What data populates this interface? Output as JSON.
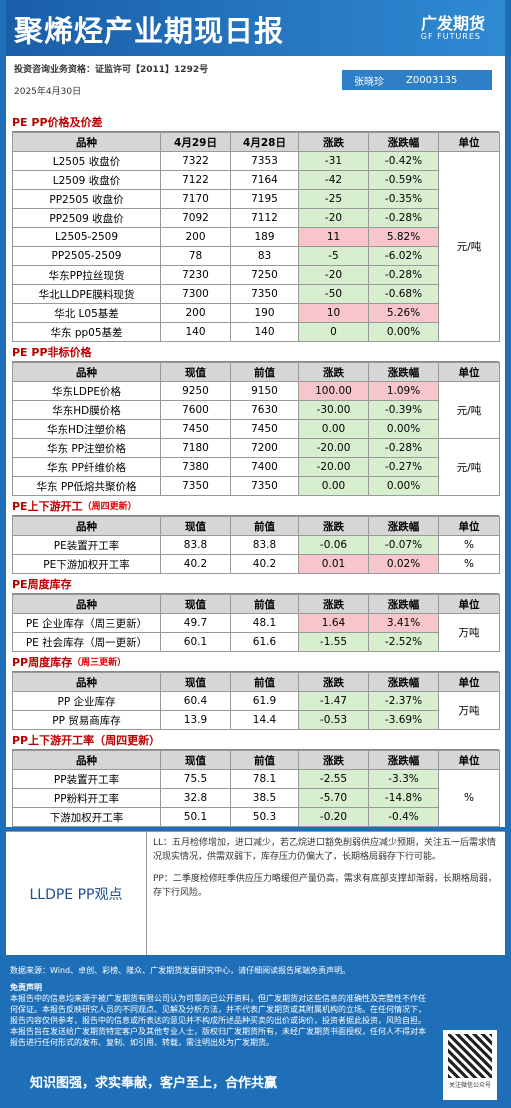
{
  "header": {
    "title": "聚烯烃产业期现日报",
    "logo": "广发期货",
    "logo_en": "GF FUTURES",
    "license": "投资咨询业务资格：证监许可【2011】1292号",
    "date": "2025年4月30日",
    "analyst": "张晓珍",
    "analyst_id": "Z0003135"
  },
  "sections": [
    {
      "title": "PE PP价格及价差",
      "columns": [
        "品种",
        "4月29日",
        "4月28日",
        "涨跌",
        "涨跌幅",
        "单位"
      ],
      "groups": [
        {
          "unit": "元/吨",
          "rows": [
            [
              "L2505 收盘价",
              "7322",
              "7353",
              "-31",
              "-0.42%"
            ],
            [
              "L2509 收盘价",
              "7122",
              "7164",
              "-42",
              "-0.59%"
            ],
            [
              "PP2505 收盘价",
              "7170",
              "7195",
              "-25",
              "-0.35%"
            ],
            [
              "PP2509 收盘价",
              "7092",
              "7112",
              "-20",
              "-0.28%"
            ],
            [
              "L2505-2509",
              "200",
              "189",
              "11",
              "5.82%"
            ],
            [
              "PP2505-2509",
              "78",
              "83",
              "-5",
              "-6.02%"
            ],
            [
              "华东PP拉丝现货",
              "7230",
              "7250",
              "-20",
              "-0.28%"
            ],
            [
              "华北LLDPE膜料现货",
              "7300",
              "7350",
              "-50",
              "-0.68%"
            ],
            [
              "华北 L05基差",
              "200",
              "190",
              "10",
              "5.26%"
            ],
            [
              "华东 pp05基差",
              "140",
              "140",
              "0",
              "0.00%"
            ]
          ]
        }
      ]
    },
    {
      "title": "PE PP非标价格",
      "columns": [
        "品种",
        "现值",
        "前值",
        "涨跌",
        "涨跌幅",
        "单位"
      ],
      "groups": [
        {
          "unit": "元/吨",
          "rows": [
            [
              "华东LDPE价格",
              "9250",
              "9150",
              "100.00",
              "1.09%"
            ],
            [
              "华东HD膜价格",
              "7600",
              "7630",
              "-30.00",
              "-0.39%"
            ],
            [
              "华东HD注塑价格",
              "7450",
              "7450",
              "0.00",
              "0.00%"
            ]
          ]
        },
        {
          "unit": "元/吨",
          "rows": [
            [
              "华东 PP注塑价格",
              "7180",
              "7200",
              "-20.00",
              "-0.28%"
            ],
            [
              "华东 PP纤维价格",
              "7380",
              "7400",
              "-20.00",
              "-0.27%"
            ],
            [
              "华东 PP低熔共聚价格",
              "7350",
              "7350",
              "0.00",
              "0.00%"
            ]
          ]
        }
      ]
    },
    {
      "title": "PE上下游开工",
      "note": "（周四更新）",
      "columns": [
        "品种",
        "现值",
        "前值",
        "涨跌",
        "涨跌幅",
        "单位"
      ],
      "groups": [
        {
          "unit": "%",
          "rows": [
            [
              "PE装置开工率",
              "83.8",
              "83.8",
              "-0.06",
              "-0.07%"
            ]
          ]
        },
        {
          "unit": "%",
          "rows": [
            [
              "PE下游加权开工率",
              "40.2",
              "40.2",
              "0.01",
              "0.02%"
            ]
          ]
        }
      ]
    },
    {
      "title": "PE周度库存",
      "columns": [
        "品种",
        "现值",
        "前值",
        "涨跌",
        "涨跌幅",
        "单位"
      ],
      "groups": [
        {
          "unit": "万吨",
          "rows": [
            [
              "PE 企业库存（周三更新）",
              "49.7",
              "48.1",
              "1.64",
              "3.41%"
            ],
            [
              "PE 社会库存（周一更新）",
              "60.1",
              "61.6",
              "-1.55",
              "-2.52%"
            ]
          ]
        }
      ]
    },
    {
      "title": "PP周度库存",
      "note": "（周三更新）",
      "columns": [
        "品种",
        "现值",
        "前值",
        "涨跌",
        "涨跌幅",
        "单位"
      ],
      "groups": [
        {
          "unit": "万吨",
          "rows": [
            [
              "PP 企业库存",
              "60.4",
              "61.9",
              "-1.47",
              "-2.37%"
            ],
            [
              "PP 贸易商库存",
              "13.9",
              "14.4",
              "-0.53",
              "-3.69%"
            ]
          ]
        }
      ]
    },
    {
      "title": "PP上下游开工率（周四更新）",
      "columns": [
        "品种",
        "现值",
        "前值",
        "涨跌",
        "涨跌幅",
        "单位"
      ],
      "groups": [
        {
          "unit": "%",
          "rows": [
            [
              "PP装置开工率",
              "75.5",
              "78.1",
              "-2.55",
              "-3.3%"
            ],
            [
              "PP粉料开工率",
              "32.8",
              "38.5",
              "-5.70",
              "-14.8%"
            ],
            [
              "下游加权开工率",
              "50.1",
              "50.3",
              "-0.20",
              "-0.4%"
            ]
          ]
        }
      ]
    }
  ],
  "view": {
    "title": "LLDPE  PP观点",
    "paragraphs": [
      "LL：五月检修增加，进口减少，若乙烷进口豁免削弱供应减少预期，关注五一后需求情况现实情况，供需双弱下，库存压力仍偏大了，长期格局弱存下行可能。",
      "PP：二季度检修旺季供应压力略缓但产量仍高，需求有底部支撑却渐弱，长期格局弱，存下行风险。"
    ]
  },
  "footer": {
    "source": "数据来源：Wind、卓创、彩榜、隆众、广发期货发展研究中心，请仔细阅读报告尾端免责声明。",
    "disclaimer_title": "免责声明",
    "disclaimer": "本报告中的信息均来源于被广发期货有限公司认为可靠的已公开资料，但广发期货对这些信息的准确性及完整性不作任何保证。本报告反映研究人员的不同观点、见解及分析方法，并不代表广发期货或其附属机构的立场。在任何情况下，报告内容仅供参考，报告中的信息或所表达的意见并不构成所述品种买卖的出价或询价，投资者据此投资，风险自担。本报告旨在发送给广发期货特定客户及其他专业人士，版权归广发期货所有，未经广发期货书面授权，任何人不得对本报告进行任何形式的发布、复制、如引用、转载，需注明出处为广发期货。",
    "slogan": "知识图强，求实奉献，客户至上，合作共赢",
    "qr_caption": "关注微信公众号"
  }
}
